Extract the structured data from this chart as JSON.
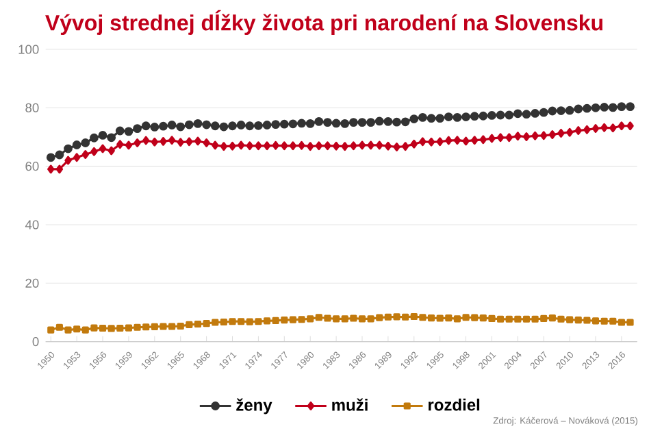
{
  "chart_data": {
    "type": "line",
    "title": "Vývoj strednej dĺžky života pri narodení na Slovensku",
    "x": [
      1950,
      1951,
      1952,
      1953,
      1954,
      1955,
      1956,
      1957,
      1958,
      1959,
      1960,
      1961,
      1962,
      1963,
      1964,
      1965,
      1966,
      1967,
      1968,
      1969,
      1970,
      1971,
      1972,
      1973,
      1974,
      1975,
      1976,
      1977,
      1978,
      1979,
      1980,
      1981,
      1982,
      1983,
      1984,
      1985,
      1986,
      1987,
      1988,
      1989,
      1990,
      1991,
      1992,
      1993,
      1994,
      1995,
      1996,
      1997,
      1998,
      1999,
      2000,
      2001,
      2002,
      2003,
      2004,
      2005,
      2006,
      2007,
      2008,
      2009,
      2010,
      2011,
      2012,
      2013,
      2014,
      2015,
      2016,
      2017
    ],
    "series": [
      {
        "name": "ženy",
        "color": "#333333",
        "marker": "circle",
        "values": [
          63.0,
          63.9,
          66.0,
          67.3,
          68.0,
          69.7,
          70.6,
          69.8,
          72.1,
          71.9,
          72.9,
          73.8,
          73.4,
          73.7,
          74.1,
          73.5,
          74.2,
          74.6,
          74.2,
          73.8,
          73.5,
          73.8,
          74.1,
          73.8,
          73.9,
          74.1,
          74.3,
          74.4,
          74.5,
          74.7,
          74.6,
          75.3,
          75.0,
          74.7,
          74.6,
          75.0,
          75.0,
          75.0,
          75.4,
          75.3,
          75.1,
          75.2,
          76.2,
          76.7,
          76.4,
          76.4,
          76.9,
          76.7,
          76.9,
          77.1,
          77.2,
          77.4,
          77.5,
          77.5,
          78.0,
          77.8,
          78.1,
          78.4,
          78.9,
          79.0,
          79.1,
          79.6,
          79.8,
          80.0,
          80.2,
          80.1,
          80.4,
          80.4
        ]
      },
      {
        "name": "muži",
        "color": "#c0001a",
        "marker": "diamond",
        "values": [
          59.0,
          59.0,
          62.0,
          63.0,
          64.0,
          65.0,
          66.0,
          65.3,
          67.5,
          67.2,
          68.0,
          68.8,
          68.3,
          68.5,
          68.9,
          68.2,
          68.4,
          68.6,
          68.0,
          67.2,
          66.8,
          66.9,
          67.2,
          67.0,
          67.0,
          67.0,
          67.1,
          67.0,
          67.0,
          67.1,
          66.8,
          67.0,
          67.0,
          66.9,
          66.8,
          67.0,
          67.2,
          67.2,
          67.2,
          66.9,
          66.6,
          66.8,
          67.6,
          68.4,
          68.3,
          68.4,
          68.8,
          68.9,
          68.6,
          68.9,
          69.1,
          69.5,
          69.8,
          69.8,
          70.3,
          70.1,
          70.4,
          70.5,
          70.8,
          71.3,
          71.6,
          72.2,
          72.5,
          72.9,
          73.2,
          73.1,
          73.8,
          73.8
        ]
      },
      {
        "name": "rozdiel",
        "color": "#c27a0d",
        "marker": "square",
        "values": [
          4.0,
          4.9,
          4.0,
          4.3,
          4.0,
          4.7,
          4.6,
          4.5,
          4.6,
          4.7,
          4.9,
          5.0,
          5.1,
          5.2,
          5.2,
          5.3,
          5.8,
          6.0,
          6.2,
          6.6,
          6.7,
          6.9,
          6.9,
          6.8,
          6.9,
          7.1,
          7.2,
          7.4,
          7.5,
          7.6,
          7.8,
          8.3,
          8.0,
          7.8,
          7.8,
          8.0,
          7.8,
          7.8,
          8.2,
          8.4,
          8.5,
          8.4,
          8.6,
          8.3,
          8.1,
          8.0,
          8.1,
          7.8,
          8.3,
          8.2,
          8.1,
          7.9,
          7.7,
          7.7,
          7.7,
          7.7,
          7.7,
          7.9,
          8.1,
          7.7,
          7.5,
          7.4,
          7.3,
          7.1,
          7.0,
          7.0,
          6.6,
          6.6
        ]
      }
    ],
    "xlim": [
      1949.4,
      2017.8
    ],
    "ylim": [
      0,
      100
    ],
    "xticks": [
      1950,
      1953,
      1956,
      1959,
      1962,
      1965,
      1968,
      1971,
      1974,
      1977,
      1980,
      1983,
      1986,
      1989,
      1992,
      1995,
      1998,
      2001,
      2004,
      2007,
      2010,
      2013,
      2016
    ],
    "yticks": [
      0,
      20,
      40,
      60,
      80,
      100
    ],
    "grid": "y",
    "legend": "bottom",
    "line_style": "solid",
    "annotations": [
      "Zdroj: Káčerová – Nováková (2015)"
    ]
  }
}
